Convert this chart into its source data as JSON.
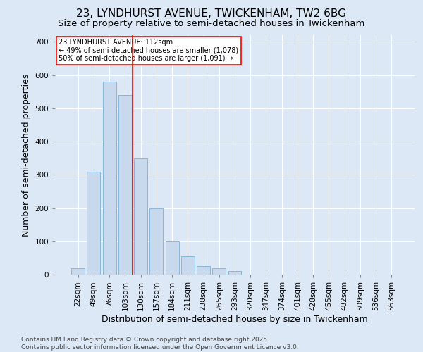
{
  "title_line1": "23, LYNDHURST AVENUE, TWICKENHAM, TW2 6BG",
  "title_line2": "Size of property relative to semi-detached houses in Twickenham",
  "xlabel": "Distribution of semi-detached houses by size in Twickenham",
  "ylabel": "Number of semi-detached properties",
  "categories": [
    "22sqm",
    "49sqm",
    "76sqm",
    "103sqm",
    "130sqm",
    "157sqm",
    "184sqm",
    "211sqm",
    "238sqm",
    "265sqm",
    "293sqm",
    "320sqm",
    "347sqm",
    "374sqm",
    "401sqm",
    "428sqm",
    "455sqm",
    "482sqm",
    "509sqm",
    "536sqm",
    "563sqm"
  ],
  "values": [
    20,
    310,
    580,
    540,
    350,
    200,
    100,
    55,
    25,
    20,
    10,
    0,
    0,
    0,
    0,
    0,
    0,
    0,
    0,
    0,
    0
  ],
  "bar_color": "#c8d9ee",
  "bar_edge_color": "#7aafd4",
  "vline_x": 3.5,
  "vline_color": "red",
  "annotation_text": "23 LYNDHURST AVENUE: 112sqm\n← 49% of semi-detached houses are smaller (1,078)\n50% of semi-detached houses are larger (1,091) →",
  "annotation_box_color": "white",
  "annotation_box_edge_color": "red",
  "ylim": [
    0,
    720
  ],
  "yticks": [
    0,
    100,
    200,
    300,
    400,
    500,
    600,
    700
  ],
  "footer_text": "Contains HM Land Registry data © Crown copyright and database right 2025.\nContains public sector information licensed under the Open Government Licence v3.0.",
  "background_color": "#dce8f5",
  "plot_bg_color": "#dce8f5",
  "title_fontsize": 11,
  "subtitle_fontsize": 9.5,
  "tick_fontsize": 7.5,
  "label_fontsize": 9,
  "footer_fontsize": 6.5,
  "annotation_fontsize": 7
}
